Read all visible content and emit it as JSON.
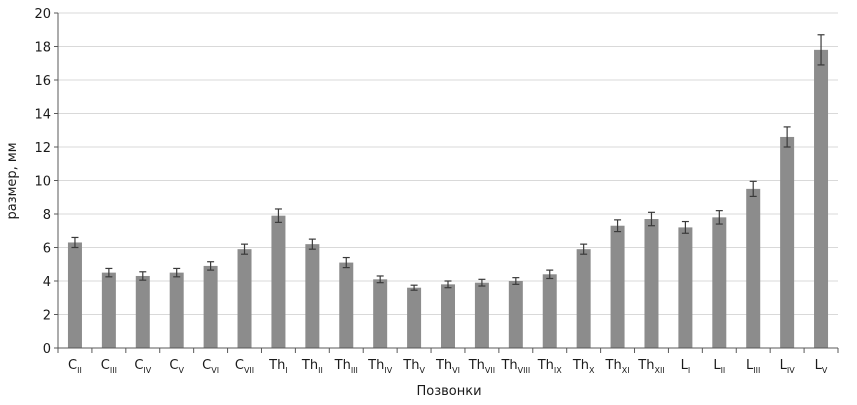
{
  "chart_data": {
    "type": "bar",
    "xlabel": "Позвонки",
    "ylabel": "размер, мм",
    "ylim": [
      0,
      20
    ],
    "yticks": [
      "0",
      "2",
      "4",
      "6",
      "8",
      "10",
      "12",
      "14",
      "16",
      "18",
      "20"
    ],
    "grid": true,
    "categories": [
      {
        "base": "C",
        "sub": "II"
      },
      {
        "base": "C",
        "sub": "III"
      },
      {
        "base": "C",
        "sub": "IV"
      },
      {
        "base": "C",
        "sub": "V"
      },
      {
        "base": "C",
        "sub": "VI"
      },
      {
        "base": "C",
        "sub": "VII"
      },
      {
        "base": "Th",
        "sub": "I"
      },
      {
        "base": "Th",
        "sub": "II"
      },
      {
        "base": "Th",
        "sub": "III"
      },
      {
        "base": "Th",
        "sub": "IV"
      },
      {
        "base": "Th",
        "sub": "V"
      },
      {
        "base": "Th",
        "sub": "VI"
      },
      {
        "base": "Th",
        "sub": "VII"
      },
      {
        "base": "Th",
        "sub": "VIII"
      },
      {
        "base": "Th",
        "sub": "IX"
      },
      {
        "base": "Th",
        "sub": "X"
      },
      {
        "base": "Th",
        "sub": "XI"
      },
      {
        "base": "Th",
        "sub": "XII"
      },
      {
        "base": "L",
        "sub": "I"
      },
      {
        "base": "L",
        "sub": "II"
      },
      {
        "base": "L",
        "sub": "III"
      },
      {
        "base": "L",
        "sub": "IV"
      },
      {
        "base": "L",
        "sub": "V"
      }
    ],
    "values": [
      6.3,
      4.5,
      4.3,
      4.5,
      4.9,
      5.9,
      7.9,
      6.2,
      5.1,
      4.1,
      3.6,
      3.8,
      3.9,
      4.0,
      4.4,
      5.9,
      7.3,
      7.7,
      7.2,
      7.8,
      9.5,
      12.6,
      17.8
    ],
    "errors": [
      0.3,
      0.25,
      0.25,
      0.25,
      0.25,
      0.3,
      0.4,
      0.3,
      0.3,
      0.2,
      0.15,
      0.2,
      0.2,
      0.2,
      0.25,
      0.3,
      0.35,
      0.4,
      0.35,
      0.4,
      0.45,
      0.6,
      0.9
    ],
    "colors": {
      "bar": "#8c8c8c",
      "error_bar": "#3a3a3a",
      "grid": "#d9d9d9",
      "axis": "#595959"
    }
  }
}
